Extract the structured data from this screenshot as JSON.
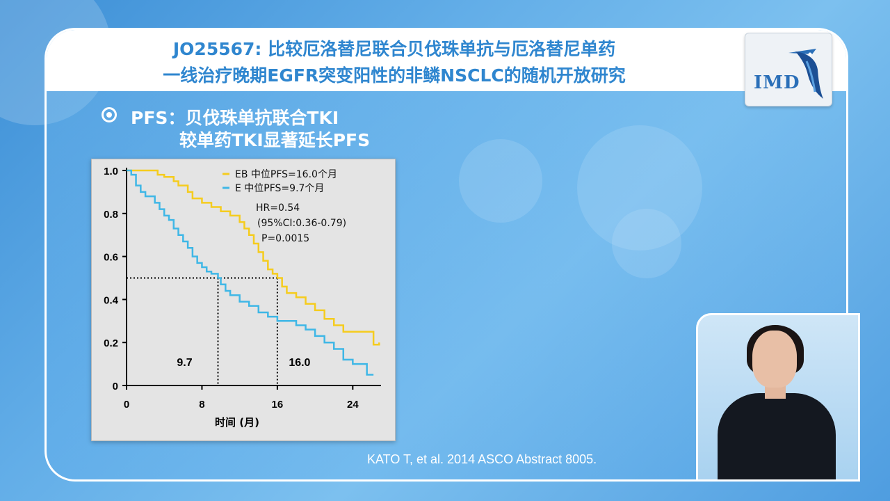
{
  "header": {
    "title_line1": "JO25567: 比较厄洛替尼联合贝伐珠单抗与厄洛替尼单药",
    "title_line2": "一线治疗晚期EGFR突变阳性的非鳞NSCLC的随机开放研究",
    "logo_text": "IMD"
  },
  "bullet": {
    "line1": "PFS：贝伐珠单抗联合TKI",
    "line2": "较单药TKI显著延长PFS"
  },
  "citation": "KATO T, et al. 2014 ASCO Abstract 8005.",
  "colors": {
    "eb_series": "#f5cc1e",
    "e_series": "#3fb7e6",
    "title_blue": "#2f86cf"
  },
  "chart_data": {
    "type": "line",
    "xlabel": "时间 (月)",
    "ylabel": "",
    "xlim": [
      0,
      27
    ],
    "ylim": [
      0,
      1.0
    ],
    "x_ticks": [
      "0",
      "8",
      "16",
      "24"
    ],
    "y_ticks": [
      "0",
      "0.2",
      "0.4",
      "0.6",
      "0.8",
      "1.0"
    ],
    "series": [
      {
        "name": "EB 中位PFS=16.0个月",
        "color": "#f5cc1e",
        "points": [
          [
            0,
            1.0
          ],
          [
            3,
            1.0
          ],
          [
            3.3,
            0.98
          ],
          [
            4,
            0.97
          ],
          [
            5,
            0.95
          ],
          [
            5.5,
            0.93
          ],
          [
            6.5,
            0.9
          ],
          [
            7,
            0.87
          ],
          [
            8,
            0.85
          ],
          [
            9,
            0.83
          ],
          [
            10,
            0.81
          ],
          [
            11,
            0.79
          ],
          [
            12,
            0.76
          ],
          [
            12.5,
            0.73
          ],
          [
            13,
            0.7
          ],
          [
            13.5,
            0.66
          ],
          [
            14,
            0.62
          ],
          [
            14.5,
            0.58
          ],
          [
            15,
            0.54
          ],
          [
            15.5,
            0.52
          ],
          [
            16,
            0.5
          ],
          [
            16.5,
            0.46
          ],
          [
            17,
            0.43
          ],
          [
            18,
            0.41
          ],
          [
            19,
            0.38
          ],
          [
            20,
            0.35
          ],
          [
            21,
            0.31
          ],
          [
            22,
            0.28
          ],
          [
            23,
            0.25
          ],
          [
            24.5,
            0.25
          ],
          [
            26,
            0.25
          ],
          [
            26.2,
            0.19
          ],
          [
            26.8,
            0.2
          ]
        ]
      },
      {
        "name": "E 中位PFS=9.7个月",
        "color": "#3fb7e6",
        "points": [
          [
            0,
            1.0
          ],
          [
            0.5,
            0.98
          ],
          [
            1,
            0.93
          ],
          [
            1.5,
            0.9
          ],
          [
            2,
            0.88
          ],
          [
            3,
            0.85
          ],
          [
            3.5,
            0.82
          ],
          [
            4,
            0.79
          ],
          [
            4.5,
            0.77
          ],
          [
            5,
            0.73
          ],
          [
            5.5,
            0.7
          ],
          [
            6,
            0.67
          ],
          [
            6.5,
            0.64
          ],
          [
            7,
            0.6
          ],
          [
            7.5,
            0.57
          ],
          [
            8,
            0.55
          ],
          [
            8.5,
            0.53
          ],
          [
            9,
            0.52
          ],
          [
            9.7,
            0.5
          ],
          [
            10,
            0.47
          ],
          [
            10.5,
            0.44
          ],
          [
            11,
            0.42
          ],
          [
            12,
            0.39
          ],
          [
            13,
            0.37
          ],
          [
            14,
            0.34
          ],
          [
            15,
            0.32
          ],
          [
            16,
            0.3
          ],
          [
            17,
            0.3
          ],
          [
            18,
            0.28
          ],
          [
            19,
            0.26
          ],
          [
            20,
            0.23
          ],
          [
            21,
            0.2
          ],
          [
            22,
            0.17
          ],
          [
            23,
            0.12
          ],
          [
            24,
            0.1
          ],
          [
            25,
            0.1
          ],
          [
            25.5,
            0.05
          ],
          [
            26.2,
            0.05
          ]
        ]
      }
    ],
    "annotations": {
      "hr": "HR=0.54",
      "ci": "(95%CI:0.36-0.79)",
      "p": "P=0.0015"
    },
    "median_markers": [
      {
        "x": 9.7,
        "y": 0.5,
        "label": "9.7"
      },
      {
        "x": 16.0,
        "y": 0.5,
        "label": "16.0"
      }
    ]
  }
}
